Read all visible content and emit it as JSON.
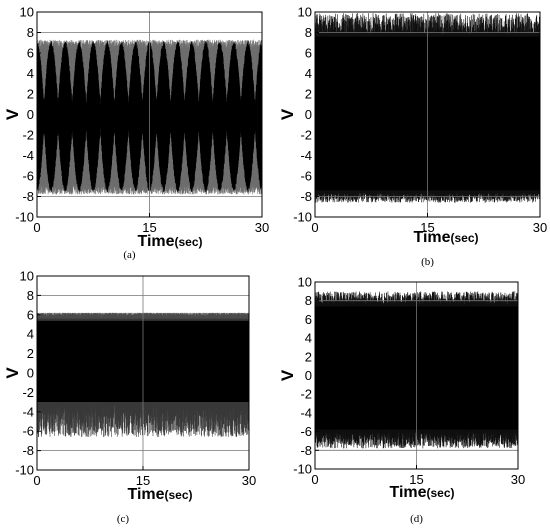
{
  "chart_data": [
    {
      "type": "line",
      "panel_label": "(a)",
      "xlabel": "Time",
      "xlabel_unit": "(sec)",
      "ylabel": "V",
      "xlim": [
        0,
        30
      ],
      "ylim": [
        -10,
        10
      ],
      "x_ticks": [
        0,
        15,
        30
      ],
      "y_ticks": [
        -10,
        -8,
        -6,
        -4,
        -2,
        0,
        2,
        4,
        6,
        8,
        10
      ],
      "grid": "reference lines at x=15, y=-8, y=8",
      "series": [
        {
          "t": [
            0,
            1.9,
            3.8,
            5.7,
            7.6,
            9.5,
            11.4,
            13.3,
            15.2,
            17.1,
            19.0,
            20.9,
            22.8,
            24.7,
            26.6,
            28.5
          ],
          "peak_max": 7.3,
          "peak_min": -7.8,
          "envelope_nodes_per_30s": 16,
          "node_amplitude": 0.7,
          "color": "#000000"
        }
      ]
    },
    {
      "type": "line",
      "panel_label": "(b)",
      "xlabel": "Time",
      "xlabel_unit": "(sec)",
      "ylabel": "V",
      "xlim": [
        0,
        30
      ],
      "ylim": [
        -10,
        10
      ],
      "x_ticks": [
        0,
        15,
        30
      ],
      "y_ticks": [
        -10,
        -8,
        -6,
        -4,
        -2,
        0,
        2,
        4,
        6,
        8,
        10
      ],
      "grid": "reference lines at x=15, y=-8, y=8",
      "series": [
        {
          "peak_max": 9.9,
          "peak_min": -8.6,
          "band_top": 7.8,
          "band_bottom": -7.6,
          "color": "#000000"
        }
      ]
    },
    {
      "type": "line",
      "panel_label": "(c)",
      "xlabel": "Time",
      "xlabel_unit": "(sec)",
      "ylabel": "V",
      "xlim": [
        0,
        30
      ],
      "ylim": [
        -10,
        10
      ],
      "x_ticks": [
        0,
        15,
        30
      ],
      "y_ticks": [
        -10,
        -8,
        -6,
        -4,
        -2,
        0,
        2,
        4,
        6,
        8,
        10
      ],
      "grid": "reference lines at x=15, y=-8, y=8",
      "series": [
        {
          "peak_max": 6.2,
          "peak_min": -6.6,
          "band_top": 5.6,
          "band_bottom": -3.2,
          "color": "#000000"
        }
      ]
    },
    {
      "type": "line",
      "panel_label": "(d)",
      "xlabel": "Time",
      "xlabel_unit": "(sec)",
      "ylabel": "V",
      "xlim": [
        0,
        30
      ],
      "ylim": [
        -10,
        10
      ],
      "x_ticks": [
        0,
        15,
        30
      ],
      "y_ticks": [
        -10,
        -8,
        -6,
        -4,
        -2,
        0,
        2,
        4,
        6,
        8,
        10
      ],
      "grid": "reference lines at x=15, y=-8, y=8",
      "series": [
        {
          "peak_max": 9.0,
          "peak_min": -7.8,
          "band_top": 7.6,
          "band_bottom": -6.0,
          "color": "#000000"
        }
      ]
    }
  ]
}
